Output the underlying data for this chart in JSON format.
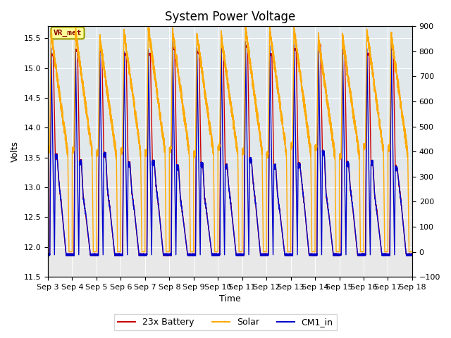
{
  "title": "System Power Voltage",
  "xlabel": "Time",
  "ylabel": "Volts",
  "ylim_left": [
    11.5,
    15.7
  ],
  "ylim_right": [
    -100,
    900
  ],
  "yticks_left": [
    11.5,
    12.0,
    12.5,
    13.0,
    13.5,
    14.0,
    14.5,
    15.0,
    15.5
  ],
  "yticks_right": [
    -100,
    0,
    100,
    200,
    300,
    400,
    500,
    600,
    700,
    800,
    900
  ],
  "num_days": 15,
  "battery_color": "#cc0000",
  "solar_color": "#ffaa00",
  "cm1_color": "#0000cc",
  "figure_color": "#ffffff",
  "panel_color": "#e8e8e8",
  "panel_band_color": "#dce8f0",
  "annotation_text": "VR_met",
  "legend_labels": [
    "23x Battery",
    "Solar",
    "CM1_in"
  ],
  "title_fontsize": 12,
  "axis_fontsize": 9,
  "tick_fontsize": 8,
  "legend_fontsize": 9,
  "x_tick_labels": [
    "Sep 3",
    "Sep 4",
    "Sep 5",
    "Sep 6",
    "Sep 7",
    "Sep 8",
    "Sep 9",
    "Sep 10",
    "Sep 11",
    "Sep 12",
    "Sep 13",
    "Sep 14",
    "Sep 15",
    "Sep 16",
    "Sep 17",
    "Sep 18"
  ],
  "grid_color": "#ffffff",
  "linewidth": 1.0
}
